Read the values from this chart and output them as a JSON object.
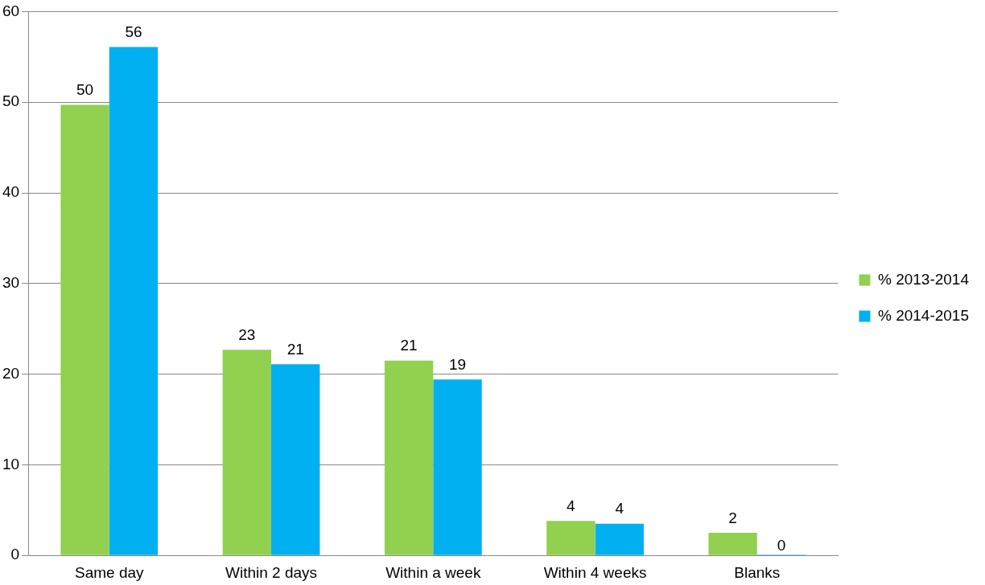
{
  "chart_data": {
    "type": "bar",
    "categories": [
      "Same day",
      "Within 2 days",
      "Within a week",
      "Within 4 weeks",
      "Blanks"
    ],
    "series": [
      {
        "name": "% 2013-2014",
        "color": "#92d050",
        "values": [
          49.7,
          22.7,
          21.5,
          3.8,
          2.5
        ],
        "value_labels": [
          "50",
          "23",
          "21",
          "4",
          "2"
        ]
      },
      {
        "name": "% 2014-2015",
        "color": "#00b0f0",
        "values": [
          56.1,
          21.1,
          19.4,
          3.5,
          0
        ],
        "value_labels": [
          "56",
          "21",
          "19",
          "4",
          "0"
        ]
      }
    ],
    "ylim": [
      0,
      60
    ],
    "yticks": [
      0,
      10,
      20,
      30,
      40,
      50,
      60
    ],
    "grid": "y",
    "legend": "right"
  }
}
